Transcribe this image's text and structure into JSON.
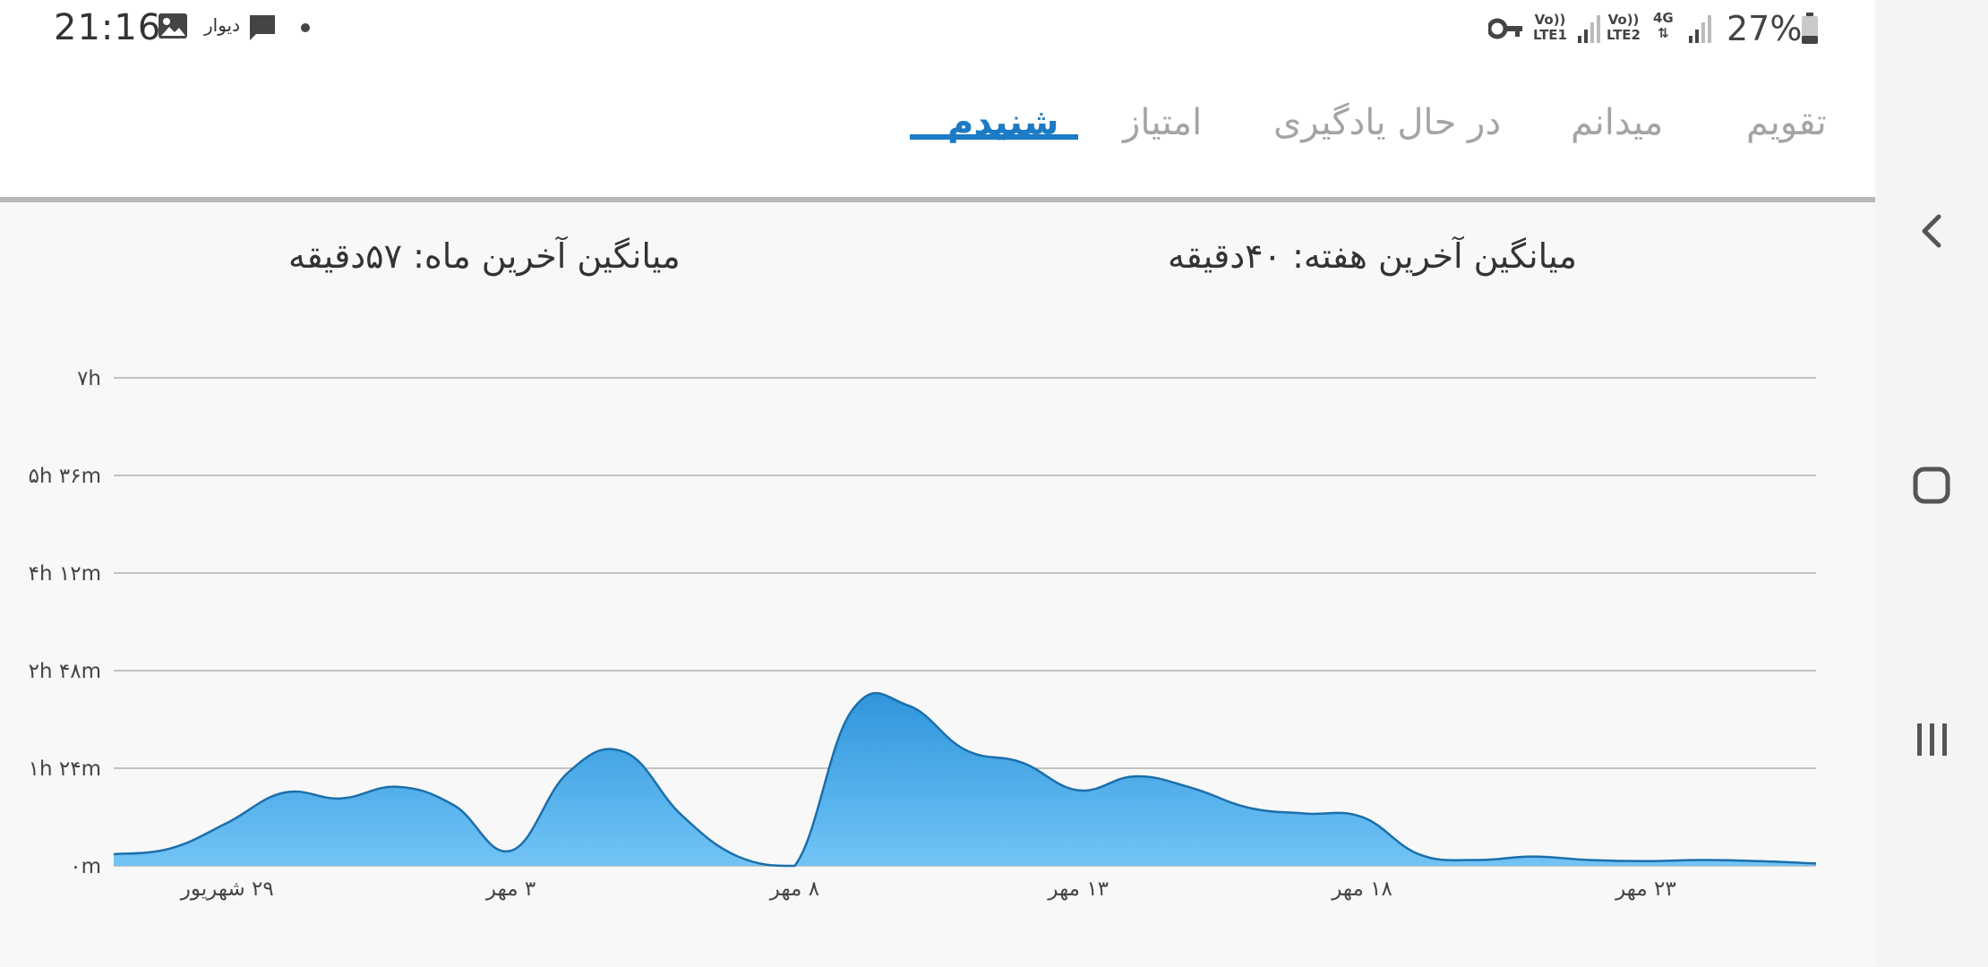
{
  "status_bar": {
    "time": "21:16",
    "notification_app": "دیوار",
    "sim1_top": "Vo))",
    "sim1_bottom": "LTE1",
    "sim2_top": "Vo))",
    "sim2_bottom": "LTE2",
    "network_type": "4G",
    "battery": "27%",
    "icons": [
      "image-icon",
      "message-icon",
      "key-icon",
      "signal-icon",
      "battery-icon"
    ]
  },
  "tabs": [
    {
      "label": "تقویم",
      "active": false
    },
    {
      "label": "میدانم",
      "active": false
    },
    {
      "label": "در حال یادگیری",
      "active": false
    },
    {
      "label": "امتیاز",
      "active": false
    },
    {
      "label": "شنیدم",
      "active": true
    }
  ],
  "stats": {
    "weekly_average": "میانگین آخرین هفته: ۴۰دقیقه",
    "monthly_average": "میانگین آخرین ماه: ۵۷دقیقه"
  },
  "chart_data": {
    "type": "area",
    "color": "#2f95dc",
    "y_tick_labels": [
      "۰m",
      "۱h ۲۴m",
      "۲h ۴۸m",
      "۴h ۱۲m",
      "۵h ۳۶m",
      "۷h"
    ],
    "y_tick_minutes": [
      0,
      84,
      168,
      252,
      336,
      420
    ],
    "ylim_minutes": [
      0,
      420
    ],
    "grid": true,
    "x_tick_labels": [
      "۲۹ شهریور",
      "۳ مهر",
      "۸ مهر",
      "۱۳ مهر",
      "۱۸ مهر",
      "۲۳ مهر"
    ],
    "x_tick_index": [
      2,
      7,
      12,
      17,
      22,
      27
    ],
    "values_minutes": [
      10,
      15,
      37,
      63,
      58,
      68,
      52,
      13,
      80,
      98,
      44,
      8,
      0,
      133,
      138,
      100,
      89,
      65,
      77,
      67,
      50,
      45,
      42,
      10,
      5,
      8,
      5,
      4,
      5,
      4,
      2
    ]
  },
  "navbar": {
    "icons": [
      "back-icon",
      "home-icon",
      "recents-icon"
    ]
  }
}
